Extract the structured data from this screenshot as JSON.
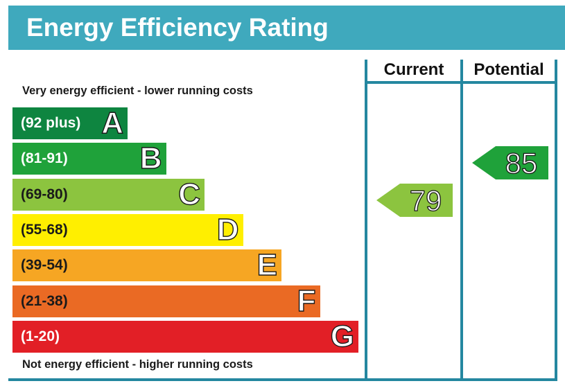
{
  "title": "Energy Efficiency Rating",
  "columns": {
    "current": "Current",
    "potential": "Potential"
  },
  "notes": {
    "top": "Very energy efficient - lower running costs",
    "bottom": "Not energy efficient - higher running costs"
  },
  "colors": {
    "header": "#3fa9bd",
    "outline": "#2487a0",
    "A": "#0e8540",
    "B": "#1fa23a",
    "C": "#8cc43f",
    "D": "#ffef00",
    "E": "#f6a623",
    "F": "#ea6a24",
    "G": "#e21f26"
  },
  "chart_data": {
    "type": "bar",
    "categories": [
      "A",
      "B",
      "C",
      "D",
      "E",
      "F",
      "G"
    ],
    "bands": [
      {
        "letter": "A",
        "range": "(92 plus)",
        "min": 92,
        "max": 100
      },
      {
        "letter": "B",
        "range": "(81-91)",
        "min": 81,
        "max": 91
      },
      {
        "letter": "C",
        "range": "(69-80)",
        "min": 69,
        "max": 80
      },
      {
        "letter": "D",
        "range": "(55-68)",
        "min": 55,
        "max": 68
      },
      {
        "letter": "E",
        "range": "(39-54)",
        "min": 39,
        "max": 54
      },
      {
        "letter": "F",
        "range": "(21-38)",
        "min": 21,
        "max": 38
      },
      {
        "letter": "G",
        "range": "(1-20)",
        "min": 1,
        "max": 20
      }
    ],
    "current": {
      "value": 79,
      "band": "C"
    },
    "potential": {
      "value": 85,
      "band": "B"
    }
  }
}
